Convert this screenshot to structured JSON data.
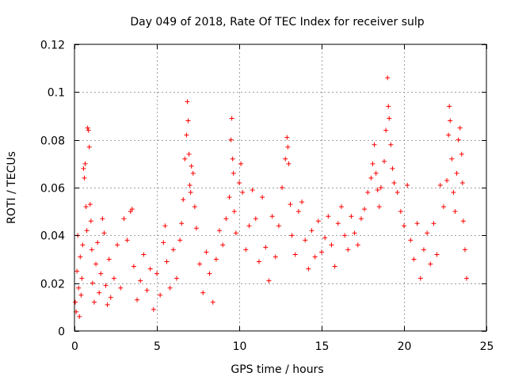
{
  "chart_data": {
    "type": "scatter",
    "title": "Day 049 of 2018, Rate Of TEC Index for receiver sulp",
    "xlabel": "GPS time / hours",
    "ylabel": "ROTI / TECUs",
    "xlim": [
      0,
      25
    ],
    "ylim": [
      0,
      0.12
    ],
    "xticks": [
      0,
      5,
      10,
      15,
      20,
      25
    ],
    "xtick_labels": [
      "0",
      "5",
      "10",
      "15",
      "20",
      "25"
    ],
    "yticks": [
      0,
      0.02,
      0.04,
      0.06,
      0.08,
      0.1,
      0.12
    ],
    "ytick_labels": [
      "0",
      "0.02",
      "0.04",
      "0.06",
      "0.08",
      "0.1",
      "0.12"
    ],
    "grid": true,
    "marker": "+",
    "marker_color": "#ff0000",
    "series": [
      {
        "name": "ROTI",
        "data_range": {
          "x": [
            0.0,
            23.8
          ],
          "y": [
            0.002,
            0.106
          ]
        },
        "points": [
          [
            0.05,
            0.012
          ],
          [
            0.1,
            0.008
          ],
          [
            0.15,
            0.025
          ],
          [
            0.2,
            0.04
          ],
          [
            0.25,
            0.018
          ],
          [
            0.3,
            0.006
          ],
          [
            0.35,
            0.031
          ],
          [
            0.4,
            0.015
          ],
          [
            0.45,
            0.022
          ],
          [
            0.5,
            0.036
          ],
          [
            0.55,
            0.068
          ],
          [
            0.6,
            0.064
          ],
          [
            0.65,
            0.07
          ],
          [
            0.7,
            0.052
          ],
          [
            0.75,
            0.042
          ],
          [
            0.8,
            0.085
          ],
          [
            0.85,
            0.084
          ],
          [
            0.9,
            0.077
          ],
          [
            0.95,
            0.053
          ],
          [
            1.0,
            0.046
          ],
          [
            1.05,
            0.034
          ],
          [
            1.1,
            0.02
          ],
          [
            1.2,
            0.012
          ],
          [
            1.3,
            0.028
          ],
          [
            1.4,
            0.037
          ],
          [
            1.5,
            0.016
          ],
          [
            1.6,
            0.024
          ],
          [
            1.7,
            0.047
          ],
          [
            1.8,
            0.041
          ],
          [
            1.9,
            0.019
          ],
          [
            2.0,
            0.011
          ],
          [
            2.1,
            0.03
          ],
          [
            2.2,
            0.014
          ],
          [
            2.4,
            0.022
          ],
          [
            2.6,
            0.036
          ],
          [
            2.8,
            0.018
          ],
          [
            3.0,
            0.047
          ],
          [
            3.2,
            0.038
          ],
          [
            3.4,
            0.05
          ],
          [
            3.5,
            0.051
          ],
          [
            3.6,
            0.027
          ],
          [
            3.8,
            0.013
          ],
          [
            4.0,
            0.021
          ],
          [
            4.2,
            0.032
          ],
          [
            4.4,
            0.017
          ],
          [
            4.6,
            0.026
          ],
          [
            4.8,
            0.009
          ],
          [
            5.0,
            0.024
          ],
          [
            5.2,
            0.015
          ],
          [
            5.4,
            0.037
          ],
          [
            5.5,
            0.044
          ],
          [
            5.6,
            0.029
          ],
          [
            5.8,
            0.018
          ],
          [
            6.0,
            0.034
          ],
          [
            6.2,
            0.022
          ],
          [
            6.4,
            0.038
          ],
          [
            6.5,
            0.045
          ],
          [
            6.6,
            0.055
          ],
          [
            6.7,
            0.072
          ],
          [
            6.8,
            0.082
          ],
          [
            6.85,
            0.096
          ],
          [
            6.9,
            0.088
          ],
          [
            6.95,
            0.074
          ],
          [
            7.0,
            0.061
          ],
          [
            7.05,
            0.058
          ],
          [
            7.1,
            0.069
          ],
          [
            7.2,
            0.066
          ],
          [
            7.3,
            0.052
          ],
          [
            7.4,
            0.043
          ],
          [
            7.6,
            0.028
          ],
          [
            7.8,
            0.016
          ],
          [
            8.0,
            0.033
          ],
          [
            8.2,
            0.024
          ],
          [
            8.4,
            0.012
          ],
          [
            8.6,
            0.03
          ],
          [
            8.8,
            0.042
          ],
          [
            9.0,
            0.036
          ],
          [
            9.2,
            0.047
          ],
          [
            9.4,
            0.056
          ],
          [
            9.5,
            0.08
          ],
          [
            9.55,
            0.089
          ],
          [
            9.6,
            0.072
          ],
          [
            9.65,
            0.066
          ],
          [
            9.7,
            0.05
          ],
          [
            9.8,
            0.041
          ],
          [
            10.0,
            0.062
          ],
          [
            10.1,
            0.07
          ],
          [
            10.2,
            0.058
          ],
          [
            10.4,
            0.034
          ],
          [
            10.6,
            0.044
          ],
          [
            10.8,
            0.059
          ],
          [
            11.0,
            0.047
          ],
          [
            11.2,
            0.029
          ],
          [
            11.4,
            0.056
          ],
          [
            11.6,
            0.035
          ],
          [
            11.8,
            0.021
          ],
          [
            12.0,
            0.048
          ],
          [
            12.2,
            0.031
          ],
          [
            12.4,
            0.044
          ],
          [
            12.6,
            0.06
          ],
          [
            12.8,
            0.072
          ],
          [
            12.9,
            0.081
          ],
          [
            12.95,
            0.077
          ],
          [
            13.0,
            0.07
          ],
          [
            13.1,
            0.053
          ],
          [
            13.2,
            0.04
          ],
          [
            13.4,
            0.032
          ],
          [
            13.6,
            0.05
          ],
          [
            13.8,
            0.054
          ],
          [
            14.0,
            0.038
          ],
          [
            14.2,
            0.026
          ],
          [
            14.4,
            0.042
          ],
          [
            14.6,
            0.031
          ],
          [
            14.8,
            0.046
          ],
          [
            15.0,
            0.033
          ],
          [
            15.2,
            0.039
          ],
          [
            15.4,
            0.048
          ],
          [
            15.6,
            0.036
          ],
          [
            15.8,
            0.027
          ],
          [
            16.0,
            0.045
          ],
          [
            16.2,
            0.052
          ],
          [
            16.4,
            0.04
          ],
          [
            16.6,
            0.034
          ],
          [
            16.8,
            0.048
          ],
          [
            17.0,
            0.041
          ],
          [
            17.2,
            0.036
          ],
          [
            17.4,
            0.047
          ],
          [
            17.6,
            0.051
          ],
          [
            17.8,
            0.058
          ],
          [
            18.0,
            0.064
          ],
          [
            18.1,
            0.07
          ],
          [
            18.2,
            0.078
          ],
          [
            18.3,
            0.066
          ],
          [
            18.4,
            0.059
          ],
          [
            18.5,
            0.052
          ],
          [
            18.6,
            0.06
          ],
          [
            18.8,
            0.071
          ],
          [
            18.9,
            0.084
          ],
          [
            19.0,
            0.106
          ],
          [
            19.05,
            0.094
          ],
          [
            19.1,
            0.089
          ],
          [
            19.2,
            0.078
          ],
          [
            19.3,
            0.068
          ],
          [
            19.4,
            0.062
          ],
          [
            19.6,
            0.058
          ],
          [
            19.8,
            0.05
          ],
          [
            20.0,
            0.044
          ],
          [
            20.2,
            0.061
          ],
          [
            20.4,
            0.038
          ],
          [
            20.6,
            0.03
          ],
          [
            20.8,
            0.045
          ],
          [
            21.0,
            0.022
          ],
          [
            21.2,
            0.034
          ],
          [
            21.4,
            0.041
          ],
          [
            21.6,
            0.028
          ],
          [
            21.8,
            0.045
          ],
          [
            22.0,
            0.032
          ],
          [
            22.2,
            0.061
          ],
          [
            22.4,
            0.052
          ],
          [
            22.6,
            0.063
          ],
          [
            22.7,
            0.082
          ],
          [
            22.75,
            0.094
          ],
          [
            22.8,
            0.088
          ],
          [
            22.9,
            0.072
          ],
          [
            23.0,
            0.058
          ],
          [
            23.1,
            0.05
          ],
          [
            23.2,
            0.066
          ],
          [
            23.3,
            0.08
          ],
          [
            23.4,
            0.085
          ],
          [
            23.5,
            0.074
          ],
          [
            23.55,
            0.062
          ],
          [
            23.6,
            0.046
          ],
          [
            23.7,
            0.034
          ],
          [
            23.8,
            0.022
          ]
        ]
      }
    ]
  }
}
